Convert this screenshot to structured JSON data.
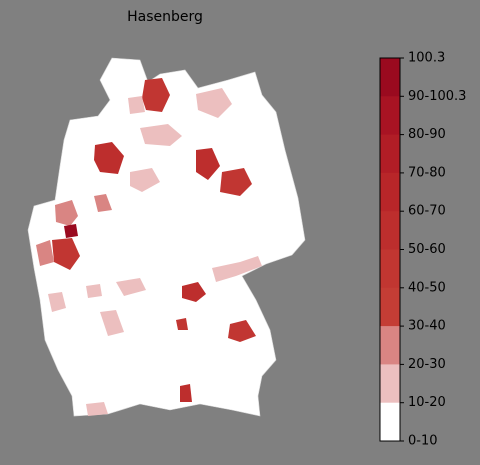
{
  "title": "Hasenberg",
  "colorbar": {
    "labels": [
      "100.3",
      "90-100.3",
      "80-90",
      "70-80",
      "60-70",
      "50-60",
      "40-50",
      "30-40",
      "20-30",
      "10-20",
      "0-10"
    ],
    "colors": [
      "#9a0a1f",
      "#a81323",
      "#b11d26",
      "#b82629",
      "#bd2e2d",
      "#c13631",
      "#c43d35",
      "#d98583",
      "#ecbfbf",
      "#ffffff"
    ]
  }
}
